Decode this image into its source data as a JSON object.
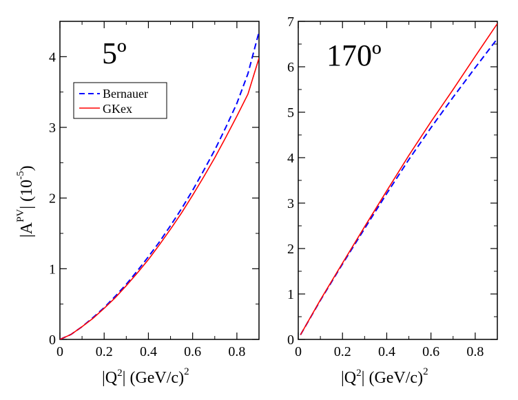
{
  "chart_data": [
    {
      "type": "line",
      "title": "5º",
      "xlabel": "|Q²| (GeV/c)²",
      "ylabel": "|A^PV| (10^-5)",
      "xlim": [
        0,
        0.9
      ],
      "ylim": [
        0,
        4.5
      ],
      "xticks": [
        "0",
        "0.2",
        "0.4",
        "0.6",
        "0.8"
      ],
      "yticks": [
        "0",
        "1",
        "2",
        "3",
        "4"
      ],
      "legend": {
        "position": "upper-left",
        "entries": [
          "Bernauer",
          "GKex"
        ]
      },
      "series": [
        {
          "name": "Bernauer",
          "color": "#0000ff",
          "dash": "dashed",
          "x": [
            0,
            0.05,
            0.1,
            0.15,
            0.2,
            0.25,
            0.3,
            0.35,
            0.4,
            0.45,
            0.5,
            0.55,
            0.6,
            0.65,
            0.7,
            0.75,
            0.8,
            0.85,
            0.9
          ],
          "y": [
            0,
            0.07,
            0.18,
            0.31,
            0.45,
            0.61,
            0.78,
            0.97,
            1.17,
            1.38,
            1.61,
            1.85,
            2.11,
            2.39,
            2.68,
            3.0,
            3.34,
            3.76,
            4.35
          ]
        },
        {
          "name": "GKex",
          "color": "#ff0000",
          "dash": "solid",
          "x": [
            0,
            0.05,
            0.1,
            0.15,
            0.2,
            0.25,
            0.3,
            0.35,
            0.4,
            0.45,
            0.5,
            0.55,
            0.6,
            0.65,
            0.7,
            0.75,
            0.8,
            0.85,
            0.9
          ],
          "y": [
            0,
            0.07,
            0.18,
            0.3,
            0.44,
            0.59,
            0.76,
            0.94,
            1.13,
            1.34,
            1.56,
            1.79,
            2.04,
            2.3,
            2.57,
            2.86,
            3.16,
            3.47,
            3.98
          ]
        }
      ]
    },
    {
      "type": "line",
      "title": "170º",
      "xlabel": "|Q²| (GeV/c)²",
      "ylabel": "",
      "xlim": [
        0,
        0.9
      ],
      "ylim": [
        0,
        7
      ],
      "xticks": [
        "0",
        "0.2",
        "0.4",
        "0.6",
        "0.8"
      ],
      "yticks": [
        "0",
        "1",
        "2",
        "3",
        "4",
        "5",
        "6",
        "7"
      ],
      "series": [
        {
          "name": "Bernauer",
          "color": "#0000ff",
          "dash": "dashed",
          "x": [
            0.01,
            0.1,
            0.2,
            0.3,
            0.4,
            0.5,
            0.6,
            0.7,
            0.8,
            0.9
          ],
          "y": [
            0.1,
            0.86,
            1.66,
            2.44,
            3.21,
            3.96,
            4.66,
            5.33,
            5.98,
            6.62
          ]
        },
        {
          "name": "GKex",
          "color": "#ff0000",
          "dash": "solid",
          "x": [
            0.01,
            0.1,
            0.2,
            0.3,
            0.4,
            0.5,
            0.6,
            0.7,
            0.8,
            0.9
          ],
          "y": [
            0.1,
            0.87,
            1.68,
            2.48,
            3.27,
            4.05,
            4.79,
            5.5,
            6.23,
            6.95
          ]
        }
      ]
    }
  ]
}
